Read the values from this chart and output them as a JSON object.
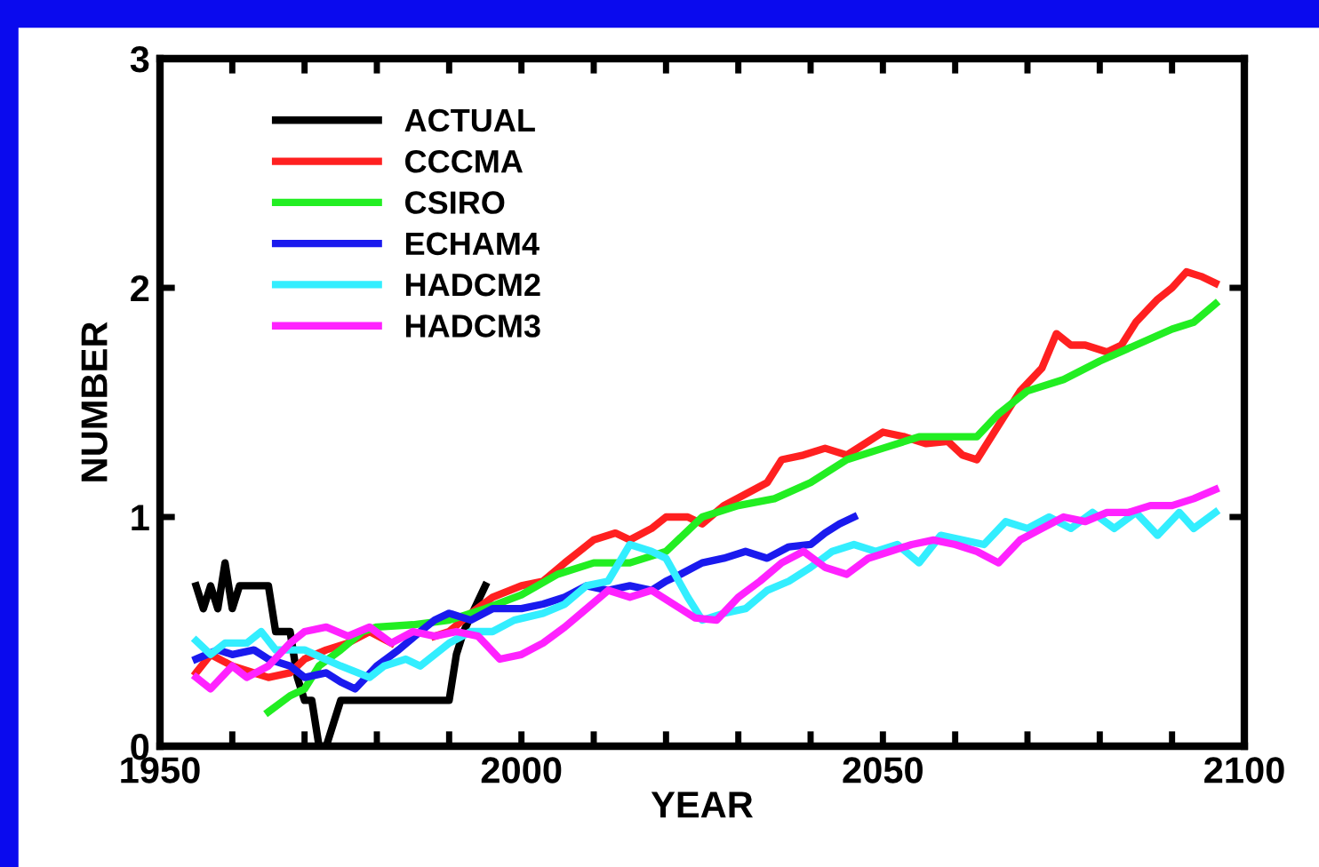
{
  "chart_data": {
    "type": "line",
    "xlabel": "YEAR",
    "ylabel": "NUMBER",
    "xlim": [
      1950,
      2100
    ],
    "ylim": [
      0,
      3
    ],
    "xticks": [
      1950,
      {
        "value": 1960,
        "label": null
      },
      {
        "value": 1970,
        "label": null
      },
      {
        "value": 1980,
        "label": null
      },
      {
        "value": 1990,
        "label": null
      },
      2000,
      {
        "value": 2010,
        "label": null
      },
      {
        "value": 2020,
        "label": null
      },
      {
        "value": 2030,
        "label": null
      },
      {
        "value": 2040,
        "label": null
      },
      2050,
      {
        "value": 2060,
        "label": null
      },
      {
        "value": 2070,
        "label": null
      },
      {
        "value": 2080,
        "label": null
      },
      {
        "value": 2090,
        "label": null
      },
      2100
    ],
    "yticks": [
      0,
      1,
      2,
      3
    ],
    "grid": false,
    "legend": "top left",
    "marker": "none",
    "line_style": "solid",
    "series": [
      {
        "name": "ACTUAL",
        "color": "#000000",
        "x": [
          1955,
          1956,
          1957,
          1958,
          1959,
          1960,
          1961,
          1962,
          1965,
          1966,
          1968,
          1969,
          1970,
          1971,
          1972,
          1973,
          1974,
          1975,
          1990,
          1991,
          1992,
          1995
        ],
        "values": [
          0.7,
          0.6,
          0.7,
          0.6,
          0.8,
          0.6,
          0.7,
          0.7,
          0.7,
          0.5,
          0.5,
          0.3,
          0.2,
          0.2,
          0,
          0,
          0.1,
          0.2,
          0.2,
          0.4,
          0.5,
          0.7
        ]
      },
      {
        "name": "CCCMA",
        "color": "#ff2020",
        "x": [
          1955,
          1957,
          1960,
          1963,
          1965,
          1968,
          1970,
          1973,
          1976,
          1979,
          1982,
          1985,
          1988,
          1990,
          1993,
          1996,
          2000,
          2003,
          2006,
          2008,
          2010,
          2013,
          2015,
          2018,
          2020,
          2023,
          2025,
          2028,
          2031,
          2034,
          2036,
          2039,
          2042,
          2045,
          2048,
          2050,
          2053,
          2056,
          2059,
          2061,
          2063,
          2066,
          2069,
          2072,
          2074,
          2076,
          2078,
          2081,
          2083,
          2085,
          2088,
          2090,
          2092,
          2094,
          2096
        ],
        "values": [
          0.32,
          0.4,
          0.35,
          0.32,
          0.3,
          0.32,
          0.38,
          0.42,
          0.45,
          0.5,
          0.45,
          null,
          0.48,
          0.5,
          0.58,
          0.65,
          0.7,
          0.72,
          0.8,
          0.85,
          0.9,
          0.93,
          0.9,
          0.95,
          1.0,
          1.0,
          0.97,
          1.05,
          1.1,
          1.15,
          1.25,
          1.27,
          1.3,
          1.27,
          1.33,
          1.37,
          1.35,
          1.32,
          1.33,
          1.27,
          1.25,
          1.4,
          1.55,
          1.65,
          1.8,
          1.75,
          1.75,
          1.72,
          1.75,
          1.85,
          1.95,
          2.0,
          2.07,
          2.05,
          2.02
        ]
      },
      {
        "name": "CSIRO",
        "color": "#22ee22",
        "x": [
          1965,
          1968,
          1970,
          1972,
          1975,
          1978,
          1980,
          1985,
          1990,
          1995,
          2000,
          2005,
          2010,
          2015,
          2020,
          2025,
          2030,
          2035,
          2040,
          2045,
          2050,
          2055,
          2060,
          2063,
          2066,
          2070,
          2075,
          2080,
          2085,
          2090,
          2093,
          2096
        ],
        "values": [
          0.15,
          0.22,
          0.25,
          0.35,
          0.42,
          0.5,
          0.52,
          0.53,
          0.55,
          0.6,
          0.66,
          0.75,
          0.8,
          0.8,
          0.85,
          1.0,
          1.05,
          1.08,
          1.15,
          1.25,
          1.3,
          1.35,
          1.35,
          1.35,
          1.45,
          1.55,
          1.6,
          1.68,
          1.75,
          1.82,
          1.85,
          1.93
        ]
      },
      {
        "name": "ECHAM4",
        "color": "#1a1aee",
        "x": [
          1955,
          1958,
          1960,
          1963,
          1965,
          1968,
          1970,
          1973,
          1975,
          1977,
          1980,
          1983,
          1986,
          1988,
          1990,
          1993,
          1996,
          2000,
          2003,
          2006,
          2009,
          2012,
          2015,
          2018,
          2020,
          2022,
          2025,
          2028,
          2031,
          2034,
          2037,
          2040,
          2042,
          2044,
          2046
        ],
        "values": [
          0.38,
          0.42,
          0.4,
          0.42,
          0.38,
          0.35,
          0.3,
          0.32,
          0.28,
          0.25,
          0.35,
          0.42,
          0.5,
          0.55,
          0.58,
          0.55,
          0.6,
          0.6,
          0.62,
          0.65,
          0.7,
          0.68,
          0.7,
          0.68,
          0.72,
          0.75,
          0.8,
          0.82,
          0.85,
          0.82,
          0.87,
          0.88,
          0.93,
          0.97,
          1.0
        ]
      },
      {
        "name": "HADCM2",
        "color": "#33eeff",
        "x": [
          1955,
          1957,
          1959,
          1962,
          1964,
          1966,
          1970,
          1975,
          1979,
          1981,
          1984,
          1986,
          1990,
          1993,
          1996,
          1999,
          2003,
          2006,
          2009,
          2012,
          2015,
          2018,
          2020,
          2023,
          2025,
          2028,
          2031,
          2034,
          2037,
          2040,
          2043,
          2046,
          2049,
          2052,
          2055,
          2058,
          2061,
          2064,
          2067,
          2070,
          2073,
          2076,
          2079,
          2082,
          2085,
          2088,
          2091,
          2093,
          2096
        ],
        "values": [
          0.46,
          0.4,
          0.45,
          0.45,
          0.5,
          0.42,
          0.42,
          0.35,
          0.3,
          0.35,
          0.38,
          0.35,
          0.45,
          0.5,
          0.5,
          0.55,
          0.58,
          0.62,
          0.7,
          0.72,
          0.88,
          0.85,
          0.82,
          0.65,
          0.55,
          0.58,
          0.6,
          0.68,
          0.72,
          0.78,
          0.85,
          0.88,
          0.85,
          0.88,
          0.8,
          0.92,
          0.9,
          0.88,
          0.98,
          0.95,
          1.0,
          0.95,
          1.02,
          0.95,
          1.02,
          0.92,
          1.02,
          0.95,
          1.02
        ]
      },
      {
        "name": "HADCM3",
        "color": "#ff22ff",
        "x": [
          1955,
          1957,
          1960,
          1962,
          1965,
          1968,
          1970,
          1973,
          1976,
          1979,
          1982,
          1985,
          1988,
          1991,
          1994,
          1997,
          2000,
          2003,
          2006,
          2009,
          2012,
          2015,
          2018,
          2021,
          2024,
          2027,
          2030,
          2033,
          2036,
          2039,
          2042,
          2045,
          2048,
          2051,
          2054,
          2057,
          2060,
          2063,
          2066,
          2069,
          2072,
          2075,
          2078,
          2081,
          2084,
          2087,
          2090,
          2093,
          2096
        ],
        "values": [
          0.3,
          0.25,
          0.35,
          0.3,
          0.35,
          0.45,
          0.5,
          0.52,
          0.48,
          0.52,
          0.45,
          0.5,
          0.48,
          0.5,
          0.48,
          0.38,
          0.4,
          0.45,
          0.52,
          0.6,
          0.68,
          0.65,
          0.68,
          0.62,
          0.56,
          0.55,
          0.65,
          0.72,
          0.8,
          0.85,
          0.78,
          0.75,
          0.82,
          0.85,
          0.88,
          0.9,
          0.88,
          0.85,
          0.8,
          0.9,
          0.95,
          1.0,
          0.98,
          1.02,
          1.02,
          1.05,
          1.05,
          1.08,
          1.12
        ]
      }
    ]
  }
}
